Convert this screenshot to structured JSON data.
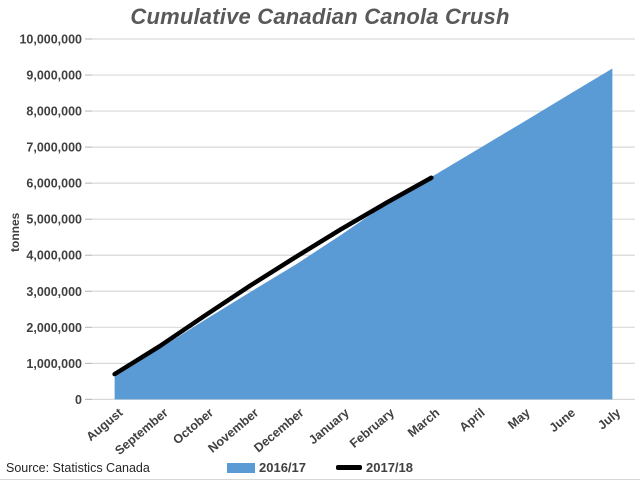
{
  "chart_data": {
    "type": "area",
    "title": "Cumulative Canadian Canola Crush",
    "ylabel": "tonnes",
    "source": "Source: Statistics Canada",
    "categories": [
      "August",
      "September",
      "October",
      "November",
      "December",
      "January",
      "February",
      "March",
      "April",
      "May",
      "June",
      "July"
    ],
    "series": [
      {
        "name": "2016/17",
        "type": "area",
        "color": "#5B9BD5",
        "values": [
          620000,
          1420000,
          2210000,
          2980000,
          3740000,
          4560000,
          5420000,
          6170000,
          6920000,
          7670000,
          8430000,
          9180000
        ]
      },
      {
        "name": "2017/18",
        "type": "line",
        "color": "#000000",
        "values": [
          700000,
          1480000,
          2330000,
          3160000,
          3950000,
          4720000,
          5450000,
          6150000
        ]
      }
    ],
    "y_axis": {
      "min": 0,
      "max": 10000000,
      "step": 1000000,
      "tick_labels": [
        "0",
        "1,000,000",
        "2,000,000",
        "3,000,000",
        "4,000,000",
        "5,000,000",
        "6,000,000",
        "7,000,000",
        "8,000,000",
        "9,000,000",
        "10,000,000"
      ]
    },
    "x_axis_rotation": -40,
    "grid": true,
    "legend_position": "bottom-center",
    "colors": {
      "gridline": "#D9D9D9",
      "tick_mark": "#BFBFBF",
      "axis_text": "#404040",
      "title_text": "#595959"
    }
  }
}
